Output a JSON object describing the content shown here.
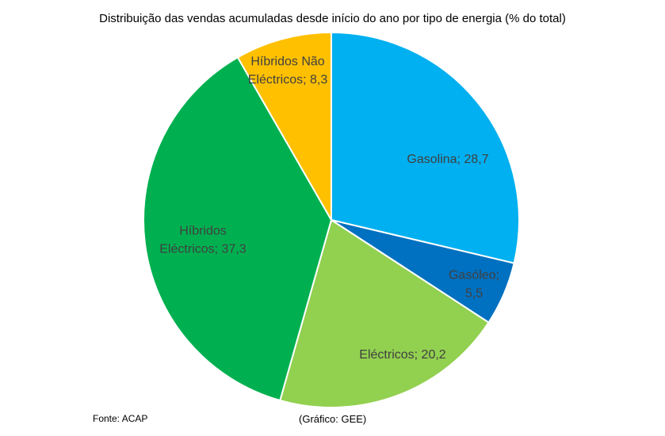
{
  "chart_data": {
    "type": "pie",
    "title": "Distribuição das vendas acumuladas desde início do ano por tipo de energia (% do total)",
    "start_angle_deg": 0,
    "direction": "clockwise",
    "slices": [
      {
        "name": "Gasolina",
        "value": 28.7,
        "label_lines": [
          "Gasolina; 28,7"
        ],
        "color": "#00B0F0"
      },
      {
        "name": "Gasóleo",
        "value": 5.5,
        "label_lines": [
          "Gasóleo;",
          "5,5"
        ],
        "color": "#0070C0"
      },
      {
        "name": "Eléctricos",
        "value": 20.2,
        "label_lines": [
          "Eléctricos; 20,2"
        ],
        "color": "#92D050"
      },
      {
        "name": "Híbridos Eléctricos",
        "value": 37.3,
        "label_lines": [
          "Híbridos",
          "Eléctricos; 37,3"
        ],
        "color": "#00B050"
      },
      {
        "name": "Híbridos Não Eléctricos",
        "value": 8.3,
        "label_lines": [
          "Híbridos Não",
          "Eléctricos; 8,3"
        ],
        "color": "#FFC000"
      }
    ]
  },
  "footer": {
    "source": "Fonte: ACAP",
    "credit": "(Gráfico: GEE)"
  }
}
